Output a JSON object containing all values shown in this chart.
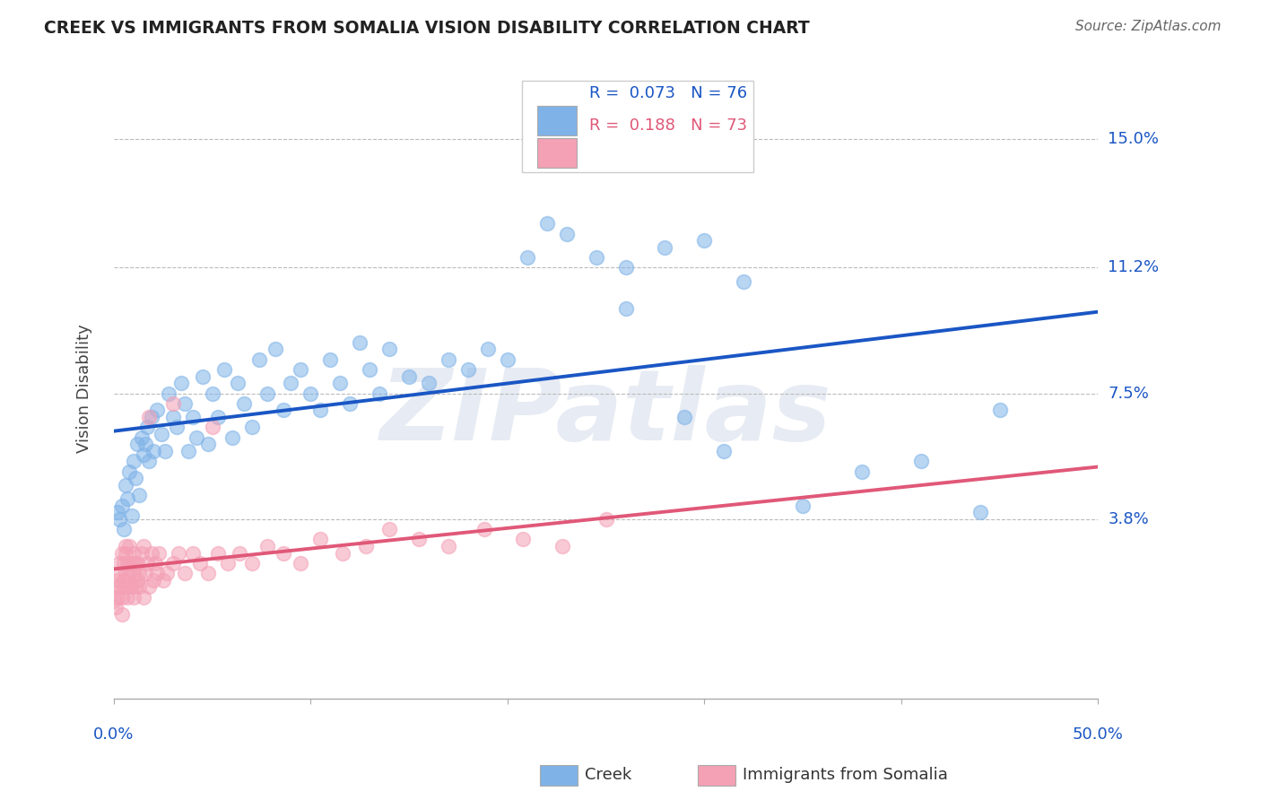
{
  "title": "CREEK VS IMMIGRANTS FROM SOMALIA VISION DISABILITY CORRELATION CHART",
  "source": "Source: ZipAtlas.com",
  "ylabel": "Vision Disability",
  "ytick_labels": [
    "15.0%",
    "11.2%",
    "7.5%",
    "3.8%"
  ],
  "ytick_values": [
    0.15,
    0.112,
    0.075,
    0.038
  ],
  "xlim": [
    0.0,
    0.5
  ],
  "ylim": [
    -0.015,
    0.168
  ],
  "creek_R": 0.073,
  "creek_N": 76,
  "somalia_R": 0.188,
  "somalia_N": 73,
  "creek_color": "#7fb3e8",
  "creek_line_color": "#1a56c4",
  "somalia_color": "#f4a0b5",
  "somalia_line_color": "#e05878",
  "background_color": "#ffffff",
  "watermark": "ZIPatlas",
  "creek_x": [
    0.002,
    0.003,
    0.004,
    0.005,
    0.006,
    0.007,
    0.008,
    0.009,
    0.01,
    0.011,
    0.012,
    0.013,
    0.014,
    0.015,
    0.016,
    0.017,
    0.018,
    0.019,
    0.02,
    0.022,
    0.024,
    0.026,
    0.028,
    0.03,
    0.032,
    0.034,
    0.036,
    0.038,
    0.04,
    0.042,
    0.045,
    0.048,
    0.05,
    0.053,
    0.056,
    0.06,
    0.063,
    0.066,
    0.07,
    0.074,
    0.078,
    0.082,
    0.086,
    0.09,
    0.095,
    0.1,
    0.105,
    0.11,
    0.115,
    0.12,
    0.125,
    0.13,
    0.135,
    0.14,
    0.15,
    0.16,
    0.17,
    0.18,
    0.19,
    0.2,
    0.21,
    0.22,
    0.23,
    0.245,
    0.26,
    0.28,
    0.3,
    0.32,
    0.35,
    0.38,
    0.29,
    0.31,
    0.26,
    0.41,
    0.44,
    0.45
  ],
  "creek_y": [
    0.04,
    0.038,
    0.042,
    0.035,
    0.048,
    0.044,
    0.052,
    0.039,
    0.055,
    0.05,
    0.06,
    0.045,
    0.062,
    0.057,
    0.06,
    0.065,
    0.055,
    0.068,
    0.058,
    0.07,
    0.063,
    0.058,
    0.075,
    0.068,
    0.065,
    0.078,
    0.072,
    0.058,
    0.068,
    0.062,
    0.08,
    0.06,
    0.075,
    0.068,
    0.082,
    0.062,
    0.078,
    0.072,
    0.065,
    0.085,
    0.075,
    0.088,
    0.07,
    0.078,
    0.082,
    0.075,
    0.07,
    0.085,
    0.078,
    0.072,
    0.09,
    0.082,
    0.075,
    0.088,
    0.08,
    0.078,
    0.085,
    0.082,
    0.088,
    0.085,
    0.115,
    0.125,
    0.122,
    0.115,
    0.112,
    0.118,
    0.12,
    0.108,
    0.042,
    0.052,
    0.068,
    0.058,
    0.1,
    0.055,
    0.04,
    0.07
  ],
  "somalia_x": [
    0.0,
    0.001,
    0.001,
    0.002,
    0.002,
    0.003,
    0.003,
    0.003,
    0.004,
    0.004,
    0.004,
    0.005,
    0.005,
    0.005,
    0.006,
    0.006,
    0.006,
    0.007,
    0.007,
    0.007,
    0.008,
    0.008,
    0.008,
    0.009,
    0.009,
    0.01,
    0.01,
    0.01,
    0.011,
    0.011,
    0.012,
    0.012,
    0.013,
    0.013,
    0.014,
    0.015,
    0.015,
    0.016,
    0.017,
    0.018,
    0.019,
    0.02,
    0.021,
    0.022,
    0.023,
    0.025,
    0.027,
    0.03,
    0.033,
    0.036,
    0.04,
    0.044,
    0.048,
    0.053,
    0.058,
    0.064,
    0.07,
    0.078,
    0.086,
    0.095,
    0.105,
    0.116,
    0.128,
    0.14,
    0.155,
    0.17,
    0.188,
    0.208,
    0.228,
    0.25,
    0.03,
    0.018,
    0.05
  ],
  "somalia_y": [
    0.014,
    0.018,
    0.012,
    0.02,
    0.015,
    0.025,
    0.018,
    0.022,
    0.015,
    0.028,
    0.01,
    0.02,
    0.025,
    0.018,
    0.03,
    0.022,
    0.028,
    0.015,
    0.025,
    0.018,
    0.03,
    0.022,
    0.025,
    0.018,
    0.025,
    0.015,
    0.028,
    0.022,
    0.025,
    0.018,
    0.02,
    0.025,
    0.018,
    0.022,
    0.028,
    0.015,
    0.03,
    0.022,
    0.025,
    0.018,
    0.028,
    0.02,
    0.025,
    0.022,
    0.028,
    0.02,
    0.022,
    0.025,
    0.028,
    0.022,
    0.028,
    0.025,
    0.022,
    0.028,
    0.025,
    0.028,
    0.025,
    0.03,
    0.028,
    0.025,
    0.032,
    0.028,
    0.03,
    0.035,
    0.032,
    0.03,
    0.035,
    0.032,
    0.03,
    0.038,
    0.072,
    0.068,
    0.065
  ]
}
